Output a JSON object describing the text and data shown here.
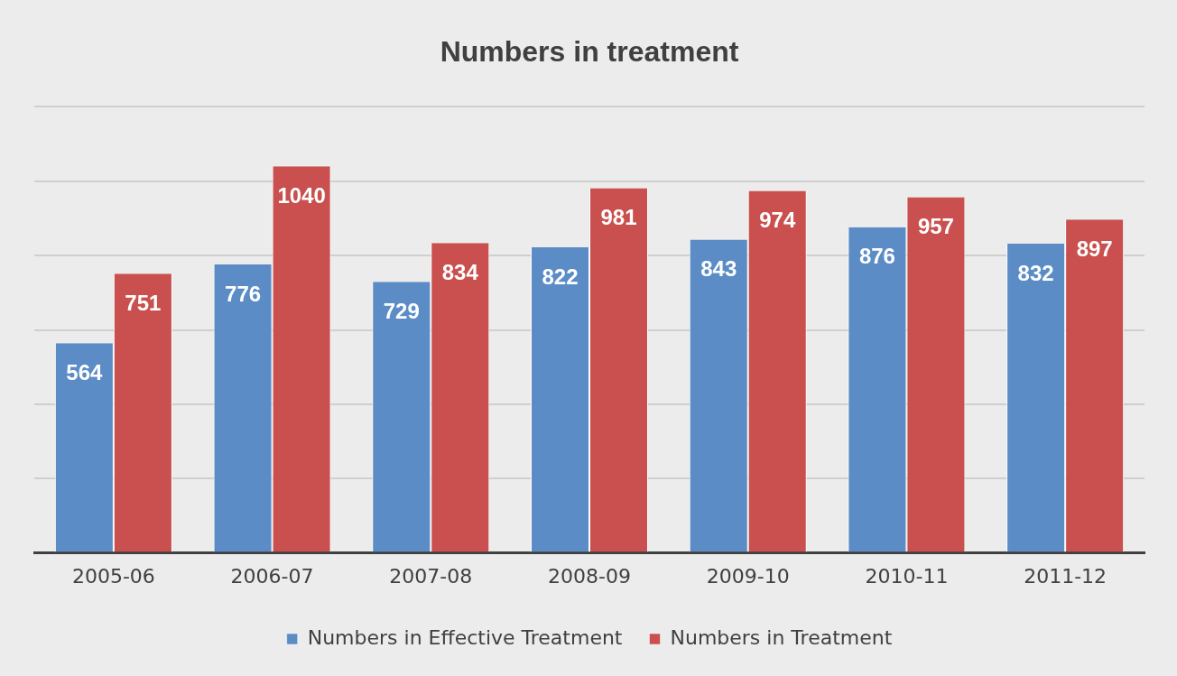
{
  "chart_data": {
    "type": "bar",
    "title": "Numbers in treatment",
    "categories": [
      "2005-06",
      "2006-07",
      "2007-08",
      "2008-09",
      "2009-10",
      "2010-11",
      "2011-12"
    ],
    "series": [
      {
        "name": "Numbers in Effective Treatment",
        "color": "#5b8cc6",
        "values": [
          564,
          776,
          729,
          822,
          843,
          876,
          832
        ]
      },
      {
        "name": "Numbers in Treatment",
        "color": "#c9504e",
        "values": [
          751,
          1040,
          834,
          981,
          974,
          957,
          897
        ]
      }
    ],
    "ylim": [
      0,
      1200
    ],
    "yticks": [
      {
        "value": 0,
        "label": null
      },
      {
        "value": 200,
        "label": null
      },
      {
        "value": 400,
        "label": null
      },
      {
        "value": 600,
        "label": null
      },
      {
        "value": 800,
        "label": null
      },
      {
        "value": 1000,
        "label": null
      },
      {
        "value": 1200,
        "label": null
      }
    ],
    "tick_labels": "x",
    "grid": "y",
    "legend": "bottom",
    "data_labels": true
  }
}
